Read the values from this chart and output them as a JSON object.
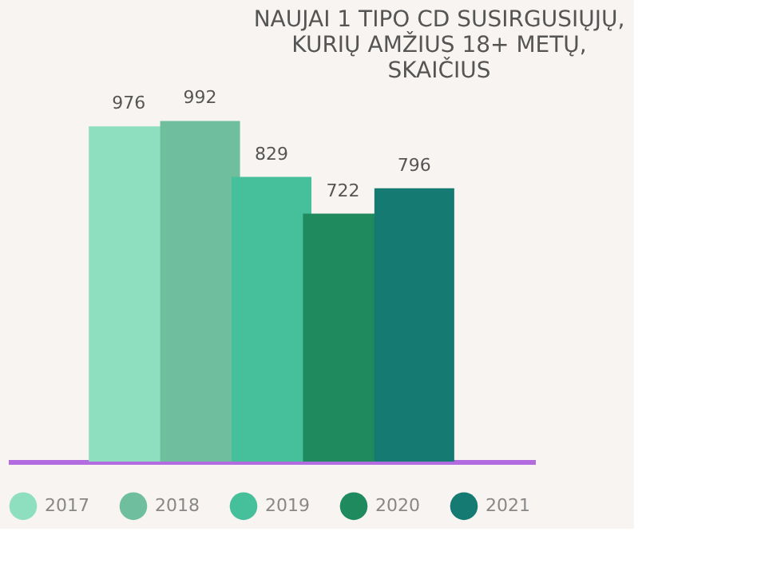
{
  "chart_data": {
    "type": "bar",
    "title": "NAUJAI 1 TIPO CD SUSIRGUSIŲJŲ,\nKURIŲ AMŽIUS 18+ METŲ,\nSKAIČIUS",
    "categories": [
      null
    ],
    "series": [
      {
        "name": "2017",
        "color": "#8ddfc0",
        "values": [
          976
        ]
      },
      {
        "name": "2018",
        "color": "#6fbf9f",
        "values": [
          992
        ]
      },
      {
        "name": "2019",
        "color": "#45c09a",
        "values": [
          829
        ]
      },
      {
        "name": "2020",
        "color": "#1e8a5e",
        "values": [
          722
        ]
      },
      {
        "name": "2021",
        "color": "#147a72",
        "values": [
          796
        ]
      }
    ],
    "data_labels": true,
    "legend": "bottom",
    "tick_labels": false,
    "grid": false
  }
}
